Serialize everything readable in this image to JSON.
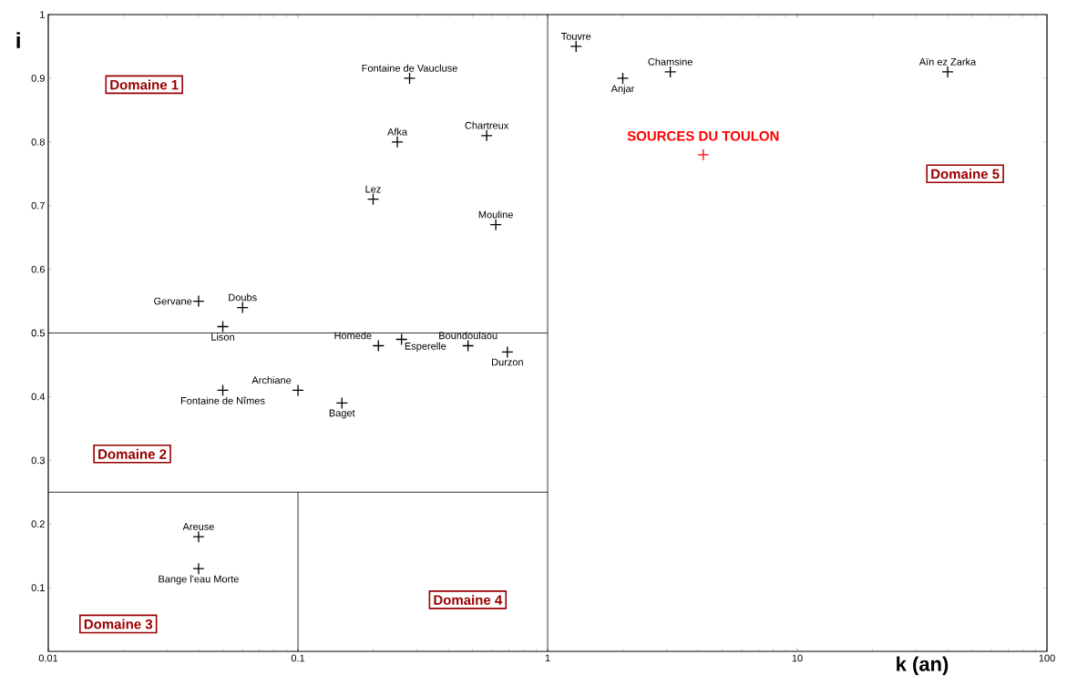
{
  "chart_data": {
    "type": "scatter",
    "xlabel": "k (an)",
    "ylabel": "i",
    "log": "x",
    "marker": "cross",
    "xlim": [
      0.01,
      100
    ],
    "ylim": [
      0,
      1
    ],
    "xticks": [
      {
        "value": 0.01,
        "label": "0.01"
      },
      {
        "value": 0.1,
        "label": "0.1"
      },
      1,
      10,
      100
    ],
    "yticks": [
      0.1,
      0.2,
      0.3,
      0.4,
      0.5,
      0.6,
      0.7,
      0.8,
      0.9,
      1
    ],
    "annotations": [
      "Domaine 1",
      "Domaine 2",
      "Domaine 3",
      "Domaine 4",
      "Domaine 5"
    ],
    "series": [
      {
        "type": "line",
        "marker": "none",
        "color": "#000000",
        "x": [
          1,
          1
        ],
        "values": [
          0,
          1
        ]
      },
      {
        "type": "line",
        "marker": "none",
        "color": "#000000",
        "x": [
          0.01,
          1
        ],
        "values": [
          0.5,
          0.5
        ]
      },
      {
        "type": "line",
        "marker": "none",
        "color": "#000000",
        "x": [
          0.01,
          1
        ],
        "values": [
          0.25,
          0.25
        ]
      },
      {
        "type": "line",
        "marker": "none",
        "color": "#000000",
        "x": [
          0.1,
          0.1
        ],
        "values": [
          0,
          0.25
        ]
      },
      {
        "name": "Fontaine de Vaucluse",
        "color": "#000000",
        "x": [
          0.28
        ],
        "values": [
          0.9
        ]
      },
      {
        "name": "Afka",
        "color": "#000000",
        "x": [
          0.25
        ],
        "values": [
          0.8
        ]
      },
      {
        "name": "Chartreux",
        "color": "#000000",
        "x": [
          0.57
        ],
        "values": [
          0.81
        ]
      },
      {
        "name": "Lez",
        "color": "#000000",
        "x": [
          0.2
        ],
        "values": [
          0.71
        ]
      },
      {
        "name": "Mouline",
        "color": "#000000",
        "x": [
          0.62
        ],
        "values": [
          0.67
        ]
      },
      {
        "name": "Gervane",
        "color": "#000000",
        "x": [
          0.04
        ],
        "values": [
          0.55
        ]
      },
      {
        "name": "Doubs",
        "color": "#000000",
        "x": [
          0.06
        ],
        "values": [
          0.54
        ]
      },
      {
        "name": "Lison",
        "color": "#000000",
        "x": [
          0.05
        ],
        "values": [
          0.51
        ]
      },
      {
        "name": "Homede",
        "color": "#000000",
        "x": [
          0.21
        ],
        "values": [
          0.48
        ]
      },
      {
        "name": "Esperelle",
        "color": "#000000",
        "x": [
          0.26
        ],
        "values": [
          0.49
        ]
      },
      {
        "name": "Boundoulaou",
        "color": "#000000",
        "x": [
          0.48
        ],
        "values": [
          0.48
        ]
      },
      {
        "name": "Durzon",
        "color": "#000000",
        "x": [
          0.69
        ],
        "values": [
          0.47
        ]
      },
      {
        "name": "Fontaine de Nîmes",
        "color": "#000000",
        "x": [
          0.05
        ],
        "values": [
          0.41
        ]
      },
      {
        "name": "Archiane",
        "color": "#000000",
        "x": [
          0.1
        ],
        "values": [
          0.41
        ]
      },
      {
        "name": "Baget",
        "color": "#000000",
        "x": [
          0.15
        ],
        "values": [
          0.39
        ]
      },
      {
        "name": "Areuse",
        "color": "#000000",
        "x": [
          0.04
        ],
        "values": [
          0.18
        ]
      },
      {
        "name": "Bange l'eau Morte",
        "color": "#000000",
        "x": [
          0.04
        ],
        "values": [
          0.13
        ]
      },
      {
        "name": "Touvre",
        "color": "#000000",
        "x": [
          1.3
        ],
        "values": [
          0.95
        ]
      },
      {
        "name": "Anjar",
        "color": "#000000",
        "x": [
          2.0
        ],
        "values": [
          0.9
        ]
      },
      {
        "name": "Chamsine",
        "color": "#000000",
        "x": [
          3.1
        ],
        "values": [
          0.91
        ]
      },
      {
        "name": "Aïn ez Zarka",
        "color": "#000000",
        "x": [
          40
        ],
        "values": [
          0.91
        ]
      },
      {
        "name": "SOURCES DU TOULON",
        "color": "#ff0000",
        "x": [
          4.2
        ],
        "values": [
          0.78
        ]
      }
    ]
  }
}
